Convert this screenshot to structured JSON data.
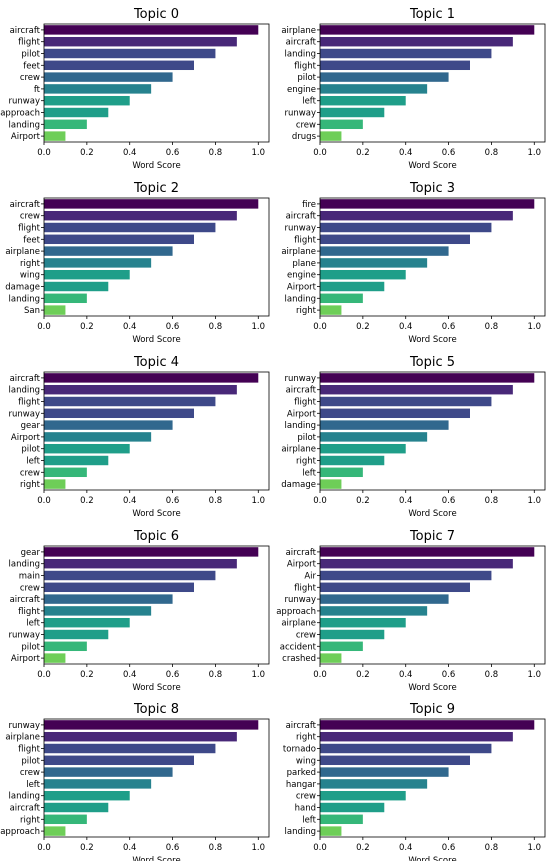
{
  "figure": {
    "xlabel": "Word Score"
  },
  "colors": [
    "#440154",
    "#482878",
    "#3e4989",
    "#31688e",
    "#26828e",
    "#1f9e89",
    "#35b779",
    "#6ece58"
  ],
  "chart_data": [
    {
      "type": "bar",
      "title": "Topic 0",
      "xlabel": "Word Score",
      "xlim": [
        0,
        1.05
      ],
      "xticks": [
        "0.0",
        "0.2",
        "0.4",
        "0.6",
        "0.8",
        "1.0"
      ],
      "categories": [
        "aircraft",
        "flight",
        "pilot",
        "feet",
        "crew",
        "ft",
        "runway",
        "approach",
        "landing",
        "Airport"
      ],
      "values": [
        1.0,
        0.9,
        0.8,
        0.7,
        0.6,
        0.5,
        0.4,
        0.3,
        0.2,
        0.1
      ]
    },
    {
      "type": "bar",
      "title": "Topic 1",
      "xlabel": "Word Score",
      "xlim": [
        0,
        1.05
      ],
      "xticks": [
        "0.0",
        "0.2",
        "0.4",
        "0.6",
        "0.8",
        "1.0"
      ],
      "categories": [
        "airplane",
        "aircraft",
        "landing",
        "flight",
        "pilot",
        "engine",
        "left",
        "runway",
        "crew",
        "drugs"
      ],
      "values": [
        1.0,
        0.9,
        0.8,
        0.7,
        0.6,
        0.5,
        0.4,
        0.3,
        0.2,
        0.1
      ]
    },
    {
      "type": "bar",
      "title": "Topic 2",
      "xlabel": "Word Score",
      "xlim": [
        0,
        1.05
      ],
      "xticks": [
        "0.0",
        "0.2",
        "0.4",
        "0.6",
        "0.8",
        "1.0"
      ],
      "categories": [
        "aircraft",
        "crew",
        "flight",
        "feet",
        "airplane",
        "right",
        "wing",
        "damage",
        "landing",
        "San"
      ],
      "values": [
        1.0,
        0.9,
        0.8,
        0.7,
        0.6,
        0.5,
        0.4,
        0.3,
        0.2,
        0.1
      ]
    },
    {
      "type": "bar",
      "title": "Topic 3",
      "xlabel": "Word Score",
      "xlim": [
        0,
        1.05
      ],
      "xticks": [
        "0.0",
        "0.2",
        "0.4",
        "0.6",
        "0.8",
        "1.0"
      ],
      "categories": [
        "fire",
        "aircraft",
        "runway",
        "flight",
        "airplane",
        "plane",
        "engine",
        "Airport",
        "landing",
        "right"
      ],
      "values": [
        1.0,
        0.9,
        0.8,
        0.7,
        0.6,
        0.5,
        0.4,
        0.3,
        0.2,
        0.1
      ]
    },
    {
      "type": "bar",
      "title": "Topic 4",
      "xlabel": "Word Score",
      "xlim": [
        0,
        1.05
      ],
      "xticks": [
        "0.0",
        "0.2",
        "0.4",
        "0.6",
        "0.8",
        "1.0"
      ],
      "categories": [
        "aircraft",
        "landing",
        "flight",
        "runway",
        "gear",
        "Airport",
        "pilot",
        "left",
        "crew",
        "right"
      ],
      "values": [
        1.0,
        0.9,
        0.8,
        0.7,
        0.6,
        0.5,
        0.4,
        0.3,
        0.2,
        0.1
      ]
    },
    {
      "type": "bar",
      "title": "Topic 5",
      "xlabel": "Word Score",
      "xlim": [
        0,
        1.05
      ],
      "xticks": [
        "0.0",
        "0.2",
        "0.4",
        "0.6",
        "0.8",
        "1.0"
      ],
      "categories": [
        "runway",
        "aircraft",
        "flight",
        "Airport",
        "landing",
        "pilot",
        "airplane",
        "right",
        "left",
        "damage"
      ],
      "values": [
        1.0,
        0.9,
        0.8,
        0.7,
        0.6,
        0.5,
        0.4,
        0.3,
        0.2,
        0.1
      ]
    },
    {
      "type": "bar",
      "title": "Topic 6",
      "xlabel": "Word Score",
      "xlim": [
        0,
        1.05
      ],
      "xticks": [
        "0.0",
        "0.2",
        "0.4",
        "0.6",
        "0.8",
        "1.0"
      ],
      "categories": [
        "gear",
        "landing",
        "main",
        "crew",
        "aircraft",
        "flight",
        "left",
        "runway",
        "pilot",
        "Airport"
      ],
      "values": [
        1.0,
        0.9,
        0.8,
        0.7,
        0.6,
        0.5,
        0.4,
        0.3,
        0.2,
        0.1
      ]
    },
    {
      "type": "bar",
      "title": "Topic 7",
      "xlabel": "Word Score",
      "xlim": [
        0,
        1.05
      ],
      "xticks": [
        "0.0",
        "0.2",
        "0.4",
        "0.6",
        "0.8",
        "1.0"
      ],
      "categories": [
        "aircraft",
        "Airport",
        "Air",
        "flight",
        "runway",
        "approach",
        "airplane",
        "crew",
        "accident",
        "crashed"
      ],
      "values": [
        1.0,
        0.9,
        0.8,
        0.7,
        0.6,
        0.5,
        0.4,
        0.3,
        0.2,
        0.1
      ]
    },
    {
      "type": "bar",
      "title": "Topic 8",
      "xlabel": "Word Score",
      "xlim": [
        0,
        1.05
      ],
      "xticks": [
        "0.0",
        "0.2",
        "0.4",
        "0.6",
        "0.8",
        "1.0"
      ],
      "categories": [
        "runway",
        "airplane",
        "flight",
        "pilot",
        "crew",
        "left",
        "landing",
        "aircraft",
        "right",
        "approach"
      ],
      "values": [
        1.0,
        0.9,
        0.8,
        0.7,
        0.6,
        0.5,
        0.4,
        0.3,
        0.2,
        0.1
      ]
    },
    {
      "type": "bar",
      "title": "Topic 9",
      "xlabel": "Word Score",
      "xlim": [
        0,
        1.05
      ],
      "xticks": [
        "0.0",
        "0.2",
        "0.4",
        "0.6",
        "0.8",
        "1.0"
      ],
      "categories": [
        "aircraft",
        "right",
        "tornado",
        "wing",
        "parked",
        "hangar",
        "crew",
        "hand",
        "left",
        "landing"
      ],
      "values": [
        1.0,
        0.9,
        0.8,
        0.7,
        0.6,
        0.5,
        0.4,
        0.3,
        0.2,
        0.1
      ]
    }
  ]
}
